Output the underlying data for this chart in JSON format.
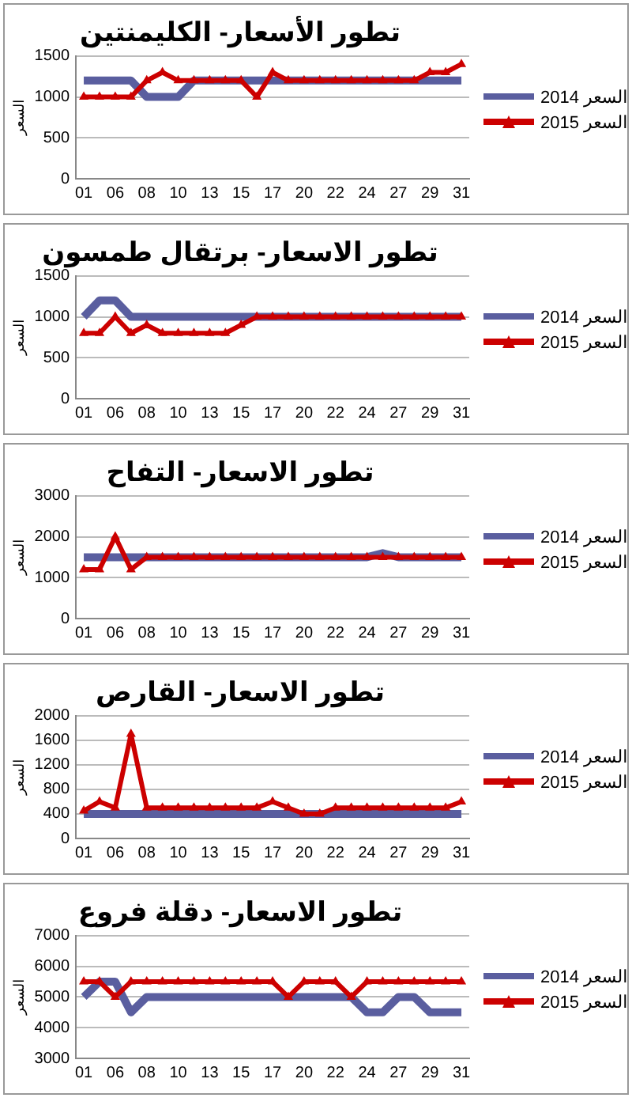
{
  "chart_data": [
    {
      "type": "line",
      "title": "تطور الأسعار- الكليمنتين",
      "ylabel": "السعر",
      "categories": [
        "01",
        null,
        "06",
        null,
        "08",
        null,
        "10",
        null,
        "13",
        null,
        "15",
        null,
        "17",
        null,
        "20",
        null,
        "22",
        null,
        "24",
        null,
        "27",
        null,
        "29",
        null,
        "31"
      ],
      "ylim": [
        0,
        1500
      ],
      "yticks": [
        0,
        500,
        1000,
        1500
      ],
      "grid": "y",
      "legend": "right",
      "series": [
        {
          "name": "السعر 2014",
          "color": "#5a5e9f",
          "marker": "none",
          "values": [
            1200,
            1200,
            1200,
            1200,
            1000,
            1000,
            1000,
            1200,
            1200,
            1200,
            1200,
            1200,
            1200,
            1200,
            1200,
            1200,
            1200,
            1200,
            1200,
            1200,
            1200,
            1200,
            1200,
            1200,
            1200
          ]
        },
        {
          "name": "السعر 2015",
          "color": "#cc0000",
          "marker": "triangle",
          "values": [
            1000,
            1000,
            1000,
            1000,
            1200,
            1300,
            1200,
            1200,
            1200,
            1200,
            1200,
            1000,
            1300,
            1200,
            1200,
            1200,
            1200,
            1200,
            1200,
            1200,
            1200,
            1200,
            1300,
            1300,
            1400
          ]
        }
      ]
    },
    {
      "type": "line",
      "title": "تطور الاسعار- برتقال طمسون",
      "ylabel": "السعر",
      "categories": [
        "01",
        null,
        "06",
        null,
        "08",
        null,
        "10",
        null,
        "13",
        null,
        "15",
        null,
        "17",
        null,
        "20",
        null,
        "22",
        null,
        "24",
        null,
        "27",
        null,
        "29",
        null,
        "31"
      ],
      "ylim": [
        0,
        1500
      ],
      "yticks": [
        0,
        500,
        1000,
        1500
      ],
      "grid": "y",
      "legend": "right",
      "series": [
        {
          "name": "السعر 2014",
          "color": "#5a5e9f",
          "marker": "none",
          "values": [
            1000,
            1200,
            1200,
            1000,
            1000,
            1000,
            1000,
            1000,
            1000,
            1000,
            1000,
            1000,
            1000,
            1000,
            1000,
            1000,
            1000,
            1000,
            1000,
            1000,
            1000,
            1000,
            1000,
            1000,
            1000
          ]
        },
        {
          "name": "السعر 2015",
          "color": "#cc0000",
          "marker": "triangle",
          "values": [
            800,
            800,
            1000,
            800,
            900,
            800,
            800,
            800,
            800,
            800,
            900,
            1000,
            1000,
            1000,
            1000,
            1000,
            1000,
            1000,
            1000,
            1000,
            1000,
            1000,
            1000,
            1000,
            1000
          ]
        }
      ]
    },
    {
      "type": "line",
      "title": "تطور الاسعار- التفاح",
      "ylabel": "السعر",
      "categories": [
        "01",
        null,
        "06",
        null,
        "08",
        null,
        "10",
        null,
        "13",
        null,
        "15",
        null,
        "17",
        null,
        "20",
        null,
        "22",
        null,
        "24",
        null,
        "27",
        null,
        "29",
        null,
        "31"
      ],
      "ylim": [
        0,
        3000
      ],
      "yticks": [
        0,
        1000,
        2000,
        3000
      ],
      "grid": "y",
      "legend": "right",
      "series": [
        {
          "name": "السعر 2014",
          "color": "#5a5e9f",
          "marker": "none",
          "values": [
            1500,
            1500,
            1500,
            1500,
            1500,
            1500,
            1500,
            1500,
            1500,
            1500,
            1500,
            1500,
            1500,
            1500,
            1500,
            1500,
            1500,
            1500,
            1500,
            1600,
            1500,
            1500,
            1500,
            1500,
            1500
          ]
        },
        {
          "name": "السعر 2015",
          "color": "#cc0000",
          "marker": "triangle",
          "values": [
            1200,
            1200,
            2000,
            1200,
            1500,
            1500,
            1500,
            1500,
            1500,
            1500,
            1500,
            1500,
            1500,
            1500,
            1500,
            1500,
            1500,
            1500,
            1500,
            1500,
            1500,
            1500,
            1500,
            1500,
            1500
          ]
        }
      ]
    },
    {
      "type": "line",
      "title": "تطور الاسعار- القارص",
      "ylabel": "السعر",
      "categories": [
        "01",
        null,
        "06",
        null,
        "08",
        null,
        "10",
        null,
        "13",
        null,
        "15",
        null,
        "17",
        null,
        "20",
        null,
        "22",
        null,
        "24",
        null,
        "27",
        null,
        "29",
        null,
        "31"
      ],
      "ylim": [
        0,
        2000
      ],
      "yticks": [
        0,
        400,
        800,
        1200,
        1600,
        2000
      ],
      "grid": "y",
      "legend": "right",
      "series": [
        {
          "name": "السعر 2014",
          "color": "#5a5e9f",
          "marker": "none",
          "values": [
            400,
            400,
            400,
            400,
            400,
            400,
            400,
            400,
            400,
            400,
            400,
            400,
            400,
            400,
            400,
            400,
            400,
            400,
            400,
            400,
            400,
            400,
            400,
            400,
            400
          ]
        },
        {
          "name": "السعر 2015",
          "color": "#cc0000",
          "marker": "triangle",
          "values": [
            450,
            600,
            500,
            1700,
            500,
            500,
            500,
            500,
            500,
            500,
            500,
            500,
            600,
            500,
            400,
            400,
            500,
            500,
            500,
            500,
            500,
            500,
            500,
            500,
            600
          ]
        }
      ]
    },
    {
      "type": "line",
      "title": "تطور الاسعار- دقلة فروع",
      "ylabel": "السعر",
      "categories": [
        "01",
        null,
        "06",
        null,
        "08",
        null,
        "10",
        null,
        "13",
        null,
        "15",
        null,
        "17",
        null,
        "20",
        null,
        "22",
        null,
        "24",
        null,
        "27",
        null,
        "29",
        null,
        "31"
      ],
      "ylim": [
        3000,
        7000
      ],
      "yticks": [
        3000,
        4000,
        5000,
        6000,
        7000
      ],
      "grid": "y",
      "legend": "right",
      "series": [
        {
          "name": "السعر 2014",
          "color": "#5a5e9f",
          "marker": "none",
          "values": [
            5000,
            5500,
            5500,
            4500,
            5000,
            5000,
            5000,
            5000,
            5000,
            5000,
            5000,
            5000,
            5000,
            5000,
            5000,
            5000,
            5000,
            5000,
            4500,
            4500,
            5000,
            5000,
            4500,
            4500,
            4500
          ]
        },
        {
          "name": "السعر 2015",
          "color": "#cc0000",
          "marker": "triangle",
          "values": [
            5500,
            5500,
            5000,
            5500,
            5500,
            5500,
            5500,
            5500,
            5500,
            5500,
            5500,
            5500,
            5500,
            5000,
            5500,
            5500,
            5500,
            5000,
            5500,
            5500,
            5500,
            5500,
            5500,
            5500,
            5500
          ]
        }
      ]
    }
  ]
}
